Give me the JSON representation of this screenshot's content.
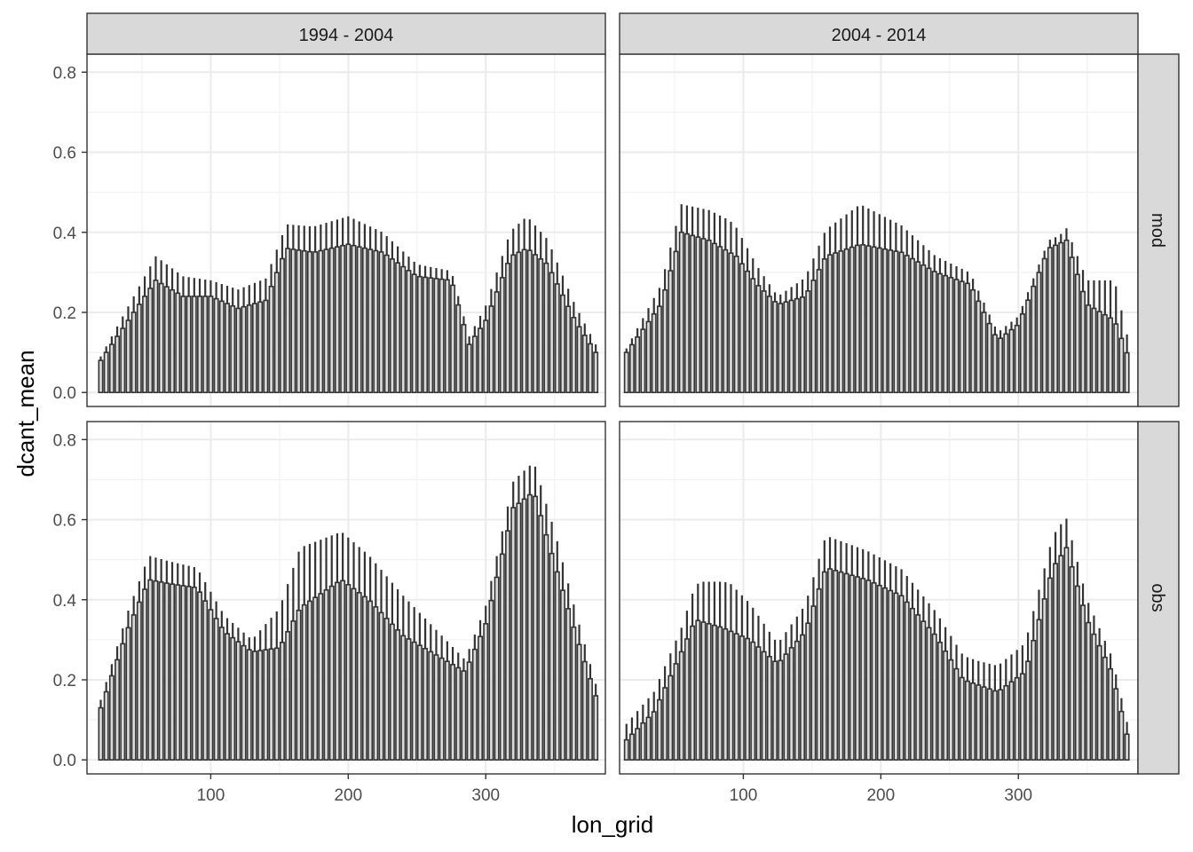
{
  "chart_data": {
    "type": "bar",
    "geom": "bar-with-errorbars",
    "xlabel": "lon_grid",
    "ylabel": "dcant_mean",
    "xlim": [
      10,
      387
    ],
    "ylim": [
      -0.035,
      0.845
    ],
    "x_ticks": [
      100,
      200,
      300
    ],
    "y_ticks": [
      0.0,
      0.2,
      0.4,
      0.6,
      0.8
    ],
    "x_tick_labels": [
      "100",
      "200",
      "300"
    ],
    "y_tick_labels": [
      "0.0",
      "0.2",
      "0.4",
      "0.6",
      "0.8"
    ],
    "grid": true,
    "theme": "bw",
    "bar_fill": "#d9d9d9",
    "bar_outline": "#333333",
    "facet_cols": [
      "1994 - 2004",
      "2004 - 2014"
    ],
    "facet_rows": [
      "mod",
      "obs"
    ],
    "panels": [
      {
        "col": "1994 - 2004",
        "row": "mod",
        "anchors": [
          [
            20,
            0.08
          ],
          [
            40,
            0.18
          ],
          [
            60,
            0.28
          ],
          [
            80,
            0.24
          ],
          [
            100,
            0.24
          ],
          [
            120,
            0.21
          ],
          [
            140,
            0.23
          ],
          [
            155,
            0.36
          ],
          [
            175,
            0.35
          ],
          [
            200,
            0.37
          ],
          [
            225,
            0.35
          ],
          [
            250,
            0.29
          ],
          [
            275,
            0.28
          ],
          [
            288,
            0.12
          ],
          [
            300,
            0.18
          ],
          [
            318,
            0.34
          ],
          [
            330,
            0.36
          ],
          [
            345,
            0.32
          ],
          [
            365,
            0.18
          ],
          [
            380,
            0.1
          ]
        ],
        "err_anchors": [
          [
            20,
            0.01
          ],
          [
            60,
            0.06
          ],
          [
            100,
            0.04
          ],
          [
            155,
            0.06
          ],
          [
            200,
            0.07
          ],
          [
            250,
            0.03
          ],
          [
            288,
            0.02
          ],
          [
            330,
            0.08
          ],
          [
            380,
            0.02
          ]
        ]
      },
      {
        "col": "2004 - 2014",
        "row": "mod",
        "anchors": [
          [
            15,
            0.1
          ],
          [
            40,
            0.22
          ],
          [
            55,
            0.4
          ],
          [
            75,
            0.38
          ],
          [
            95,
            0.34
          ],
          [
            110,
            0.27
          ],
          [
            125,
            0.22
          ],
          [
            145,
            0.24
          ],
          [
            160,
            0.34
          ],
          [
            185,
            0.37
          ],
          [
            215,
            0.35
          ],
          [
            240,
            0.3
          ],
          [
            265,
            0.27
          ],
          [
            285,
            0.13
          ],
          [
            300,
            0.17
          ],
          [
            322,
            0.36
          ],
          [
            335,
            0.38
          ],
          [
            350,
            0.22
          ],
          [
            370,
            0.18
          ],
          [
            380,
            0.09
          ]
        ],
        "err_anchors": [
          [
            15,
            0.01
          ],
          [
            55,
            0.07
          ],
          [
            90,
            0.08
          ],
          [
            125,
            0.02
          ],
          [
            185,
            0.1
          ],
          [
            240,
            0.04
          ],
          [
            285,
            0.02
          ],
          [
            330,
            0.02
          ],
          [
            370,
            0.1
          ],
          [
            380,
            0.04
          ]
        ]
      },
      {
        "col": "1994 - 2004",
        "row": "obs",
        "anchors": [
          [
            20,
            0.13
          ],
          [
            40,
            0.33
          ],
          [
            55,
            0.45
          ],
          [
            70,
            0.44
          ],
          [
            90,
            0.43
          ],
          [
            110,
            0.32
          ],
          [
            130,
            0.27
          ],
          [
            150,
            0.28
          ],
          [
            165,
            0.38
          ],
          [
            195,
            0.45
          ],
          [
            215,
            0.4
          ],
          [
            240,
            0.31
          ],
          [
            265,
            0.26
          ],
          [
            285,
            0.22
          ],
          [
            300,
            0.34
          ],
          [
            320,
            0.63
          ],
          [
            335,
            0.67
          ],
          [
            345,
            0.55
          ],
          [
            365,
            0.32
          ],
          [
            380,
            0.16
          ]
        ],
        "err_anchors": [
          [
            20,
            0.02
          ],
          [
            55,
            0.06
          ],
          [
            90,
            0.05
          ],
          [
            130,
            0.03
          ],
          [
            165,
            0.15
          ],
          [
            195,
            0.12
          ],
          [
            240,
            0.1
          ],
          [
            285,
            0.03
          ],
          [
            325,
            0.07
          ],
          [
            350,
            0.08
          ],
          [
            380,
            0.03
          ]
        ]
      },
      {
        "col": "2004 - 2014",
        "row": "obs",
        "anchors": [
          [
            15,
            0.05
          ],
          [
            35,
            0.12
          ],
          [
            55,
            0.27
          ],
          [
            65,
            0.35
          ],
          [
            85,
            0.33
          ],
          [
            105,
            0.3
          ],
          [
            125,
            0.24
          ],
          [
            145,
            0.32
          ],
          [
            160,
            0.48
          ],
          [
            190,
            0.45
          ],
          [
            215,
            0.41
          ],
          [
            240,
            0.31
          ],
          [
            260,
            0.2
          ],
          [
            285,
            0.17
          ],
          [
            305,
            0.22
          ],
          [
            325,
            0.48
          ],
          [
            335,
            0.53
          ],
          [
            350,
            0.35
          ],
          [
            368,
            0.22
          ],
          [
            380,
            0.05
          ]
        ],
        "err_anchors": [
          [
            15,
            0.04
          ],
          [
            55,
            0.06
          ],
          [
            70,
            0.1
          ],
          [
            90,
            0.12
          ],
          [
            125,
            0.05
          ],
          [
            160,
            0.08
          ],
          [
            200,
            0.07
          ],
          [
            240,
            0.06
          ],
          [
            270,
            0.06
          ],
          [
            330,
            0.08
          ],
          [
            350,
            0.05
          ],
          [
            380,
            0.03
          ]
        ]
      }
    ]
  }
}
